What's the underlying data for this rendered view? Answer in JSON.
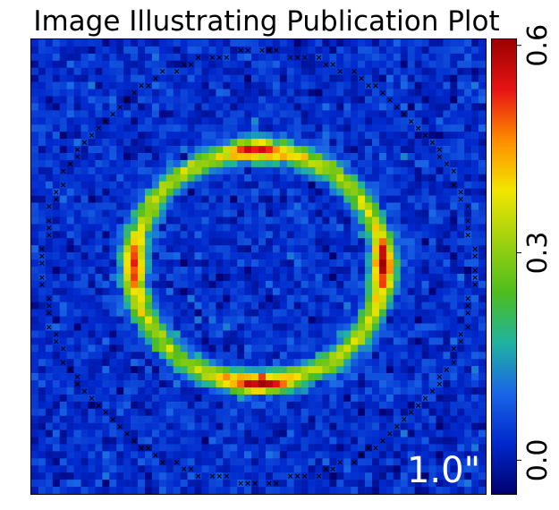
{
  "chart_data": {
    "type": "heatmap",
    "title": "Image Illustrating Publication Plot",
    "scale_label": "1.0\"",
    "grid": false,
    "image": {
      "resolution": [
        64,
        64
      ],
      "background_level": 0.03,
      "noise_level": 0.06,
      "ring": {
        "shape": "ellipse",
        "center": [
          0.0,
          0.0
        ],
        "semi_axis_x_arcsec": 0.88,
        "semi_axis_y_arcsec": 0.82,
        "width_arcsec": 0.13,
        "base_level": 0.3,
        "peaks": [
          {
            "position": "top",
            "value": 0.56
          },
          {
            "position": "bottom",
            "value": 0.57
          },
          {
            "position": "left",
            "value": 0.52
          },
          {
            "position": "right",
            "value": 0.57
          }
        ]
      },
      "mask_circle": {
        "marker": "x",
        "color": "#000000",
        "radius_arcsec": 1.51
      },
      "field_of_view_arcsec": 3.2
    },
    "colorbar": {
      "orientation": "vertical",
      "position": "right",
      "range": [
        -0.05,
        0.61
      ],
      "ticks": [
        "0.0",
        "0.3",
        "0.6"
      ],
      "tick_values": [
        0.0,
        0.3,
        0.6
      ],
      "colormap": [
        "#000070",
        "#0028cc",
        "#1a66e6",
        "#1fb3a0",
        "#4fbd1e",
        "#9fd10f",
        "#f2e600",
        "#ff8c00",
        "#e61414",
        "#9c0000"
      ]
    }
  }
}
